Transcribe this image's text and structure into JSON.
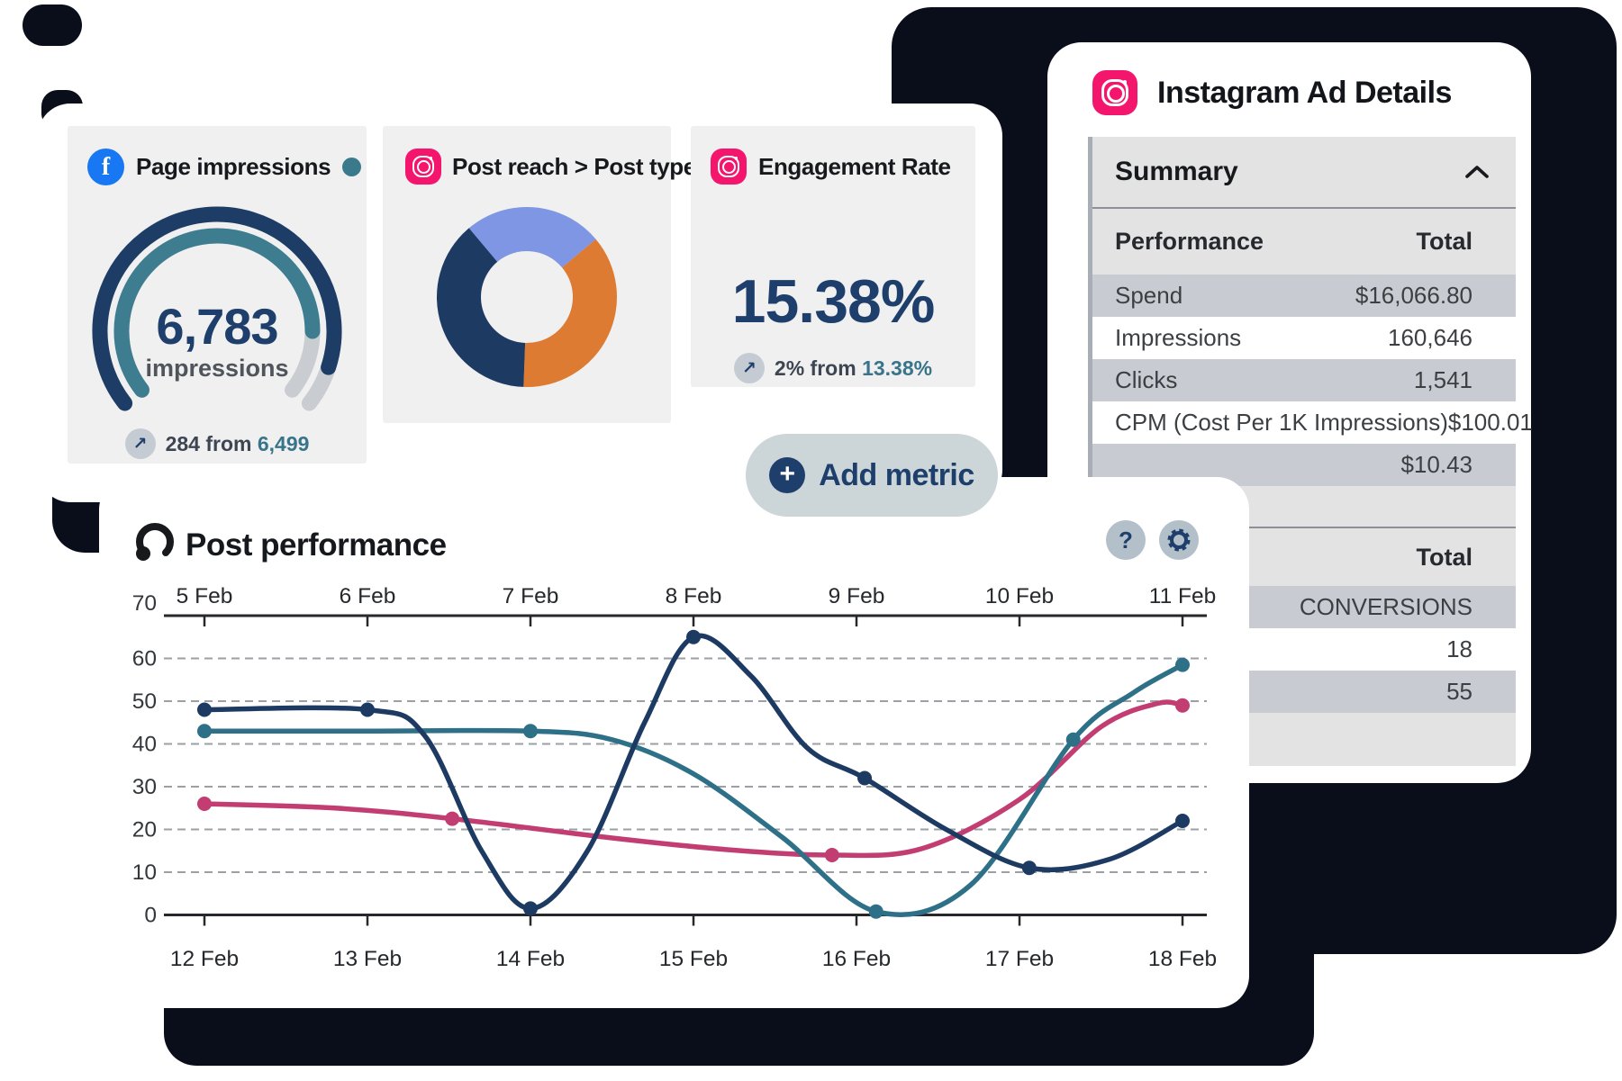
{
  "colors": {
    "navy": "#1e3f6b",
    "navy_line": "#1d3a63",
    "teal": "#38758a",
    "teal_line": "#2e7088",
    "pink": "#c23d72",
    "orange": "#dd7b33",
    "periwinkle": "#7e96e3",
    "facebook_blue": "#1877f2",
    "instagram_pink": "#f4156d",
    "shadow_black": "#0a0e1a",
    "panel_gray": "#f0f0f1",
    "pill_gray": "#ccd5d8",
    "row_gray": "#c8ccd2",
    "band_gray": "#e3e3e4",
    "gauge_rest_gray": "#c9cdd2",
    "grid_gray": "#9aa0a6",
    "axis_dark": "#26282c"
  },
  "icons": {
    "plus": "+",
    "help": "?",
    "trend_up": "↗",
    "facebook_f": "f"
  },
  "metrics_card": {
    "page_impressions": {
      "title": "Page impressions",
      "value": "6,783",
      "unit": "impressions",
      "delta_prefix": "284 from",
      "delta_value": "6,499"
    },
    "post_reach": {
      "title": "Post reach > Post type"
    },
    "engagement": {
      "title": "Engagement Rate",
      "value": "15.38%",
      "delta_prefix": "2% from",
      "delta_value": "13.38%"
    },
    "add_metric_label": "Add metric"
  },
  "instagram_panel": {
    "title": "Instagram Ad Details",
    "summary_header": "Summary",
    "performance_table": {
      "col_label": "Performance",
      "col_value": "Total",
      "rows": [
        {
          "label": "Spend",
          "value": "$16,066.80",
          "shade": "gray"
        },
        {
          "label": "Impressions",
          "value": "160,646",
          "shade": "white"
        },
        {
          "label": "Clicks",
          "value": "1,541",
          "shade": "gray"
        },
        {
          "label": "CPM (Cost Per 1K Impressions)",
          "value": "$100.01",
          "shade": "white"
        },
        {
          "label": "",
          "value": "$10.43",
          "shade": "gray"
        }
      ]
    },
    "conversions_table": {
      "col_value": "Total",
      "rows": [
        {
          "label": "",
          "value": "CONVERSIONS",
          "shade": "gray"
        },
        {
          "label": "",
          "value": "18",
          "shade": "white"
        },
        {
          "label": "",
          "value": "55",
          "shade": "gray"
        }
      ]
    }
  },
  "post_performance": {
    "title": "Post performance"
  },
  "chart_data": [
    {
      "type": "gauge",
      "title": "Page impressions",
      "value": 6783,
      "unit": "impressions",
      "previous": 6499,
      "change": 284,
      "arc": {
        "start_deg": -128,
        "end_deg": 128,
        "outer_fill_end_deg": 108,
        "inner_fill_end_deg": 90
      }
    },
    {
      "type": "pie",
      "title": "Post reach > Post type",
      "donut": true,
      "start_deg": -40,
      "segments": [
        {
          "name": "segment-blue",
          "pct": 25,
          "color_key": "periwinkle"
        },
        {
          "name": "segment-orange",
          "pct": 36.7,
          "color_key": "orange"
        },
        {
          "name": "segment-navy",
          "pct": 38.3,
          "color_key": "navy_line"
        }
      ]
    },
    {
      "type": "line",
      "title": "Post performance",
      "x_labels_top": [
        "5 Feb",
        "6 Feb",
        "7 Feb",
        "8 Feb",
        "9 Feb",
        "10 Feb",
        "11 Feb"
      ],
      "x_labels_bottom": [
        "12 Feb",
        "13 Feb",
        "14 Feb",
        "15 Feb",
        "16 Feb",
        "17 Feb",
        "18 Feb"
      ],
      "ylim": [
        0,
        70
      ],
      "yticks": [
        0,
        10,
        20,
        30,
        40,
        50,
        60,
        70
      ],
      "grid": "dashed-horizontal",
      "series": [
        {
          "name": "series-pink",
          "color_key": "pink",
          "curve": [
            [
              0,
              26
            ],
            [
              0.8,
              25
            ],
            [
              1.52,
              22.5
            ],
            [
              2.5,
              18
            ],
            [
              3.2,
              15.3
            ],
            [
              3.85,
              14
            ],
            [
              4.4,
              15.5
            ],
            [
              5.0,
              27
            ],
            [
              5.5,
              44
            ],
            [
              5.85,
              49.5
            ],
            [
              6,
              49
            ]
          ],
          "markers": [
            [
              0,
              26
            ],
            [
              1.52,
              22.5
            ],
            [
              3.85,
              14
            ],
            [
              6,
              49
            ]
          ]
        },
        {
          "name": "series-teal",
          "color_key": "teal_line",
          "curve": [
            [
              0,
              43
            ],
            [
              1,
              43
            ],
            [
              2,
              43
            ],
            [
              2.5,
              41
            ],
            [
              3,
              33
            ],
            [
              3.55,
              18
            ],
            [
              4.12,
              0.8
            ],
            [
              4.7,
              7
            ],
            [
              5.33,
              41
            ],
            [
              5.7,
              52
            ],
            [
              6,
              58.5
            ]
          ],
          "markers": [
            [
              0,
              43
            ],
            [
              2,
              43
            ],
            [
              4.12,
              0.8
            ],
            [
              5.33,
              41
            ],
            [
              6,
              58.5
            ]
          ]
        },
        {
          "name": "series-navy",
          "color_key": "navy_line",
          "curve": [
            [
              0,
              48
            ],
            [
              1,
              48
            ],
            [
              1.35,
              42
            ],
            [
              1.7,
              15
            ],
            [
              2,
              1.5
            ],
            [
              2.35,
              15
            ],
            [
              2.7,
              45
            ],
            [
              3,
              65
            ],
            [
              3.35,
              56
            ],
            [
              3.7,
              39
            ],
            [
              4.05,
              32
            ],
            [
              4.55,
              20
            ],
            [
              5.06,
              11
            ],
            [
              5.55,
              13
            ],
            [
              6,
              22
            ]
          ],
          "markers": [
            [
              0,
              48
            ],
            [
              1,
              48
            ],
            [
              2,
              1.5
            ],
            [
              3,
              65
            ],
            [
              4.05,
              32
            ],
            [
              5.06,
              11
            ],
            [
              6,
              22
            ]
          ]
        }
      ]
    }
  ]
}
